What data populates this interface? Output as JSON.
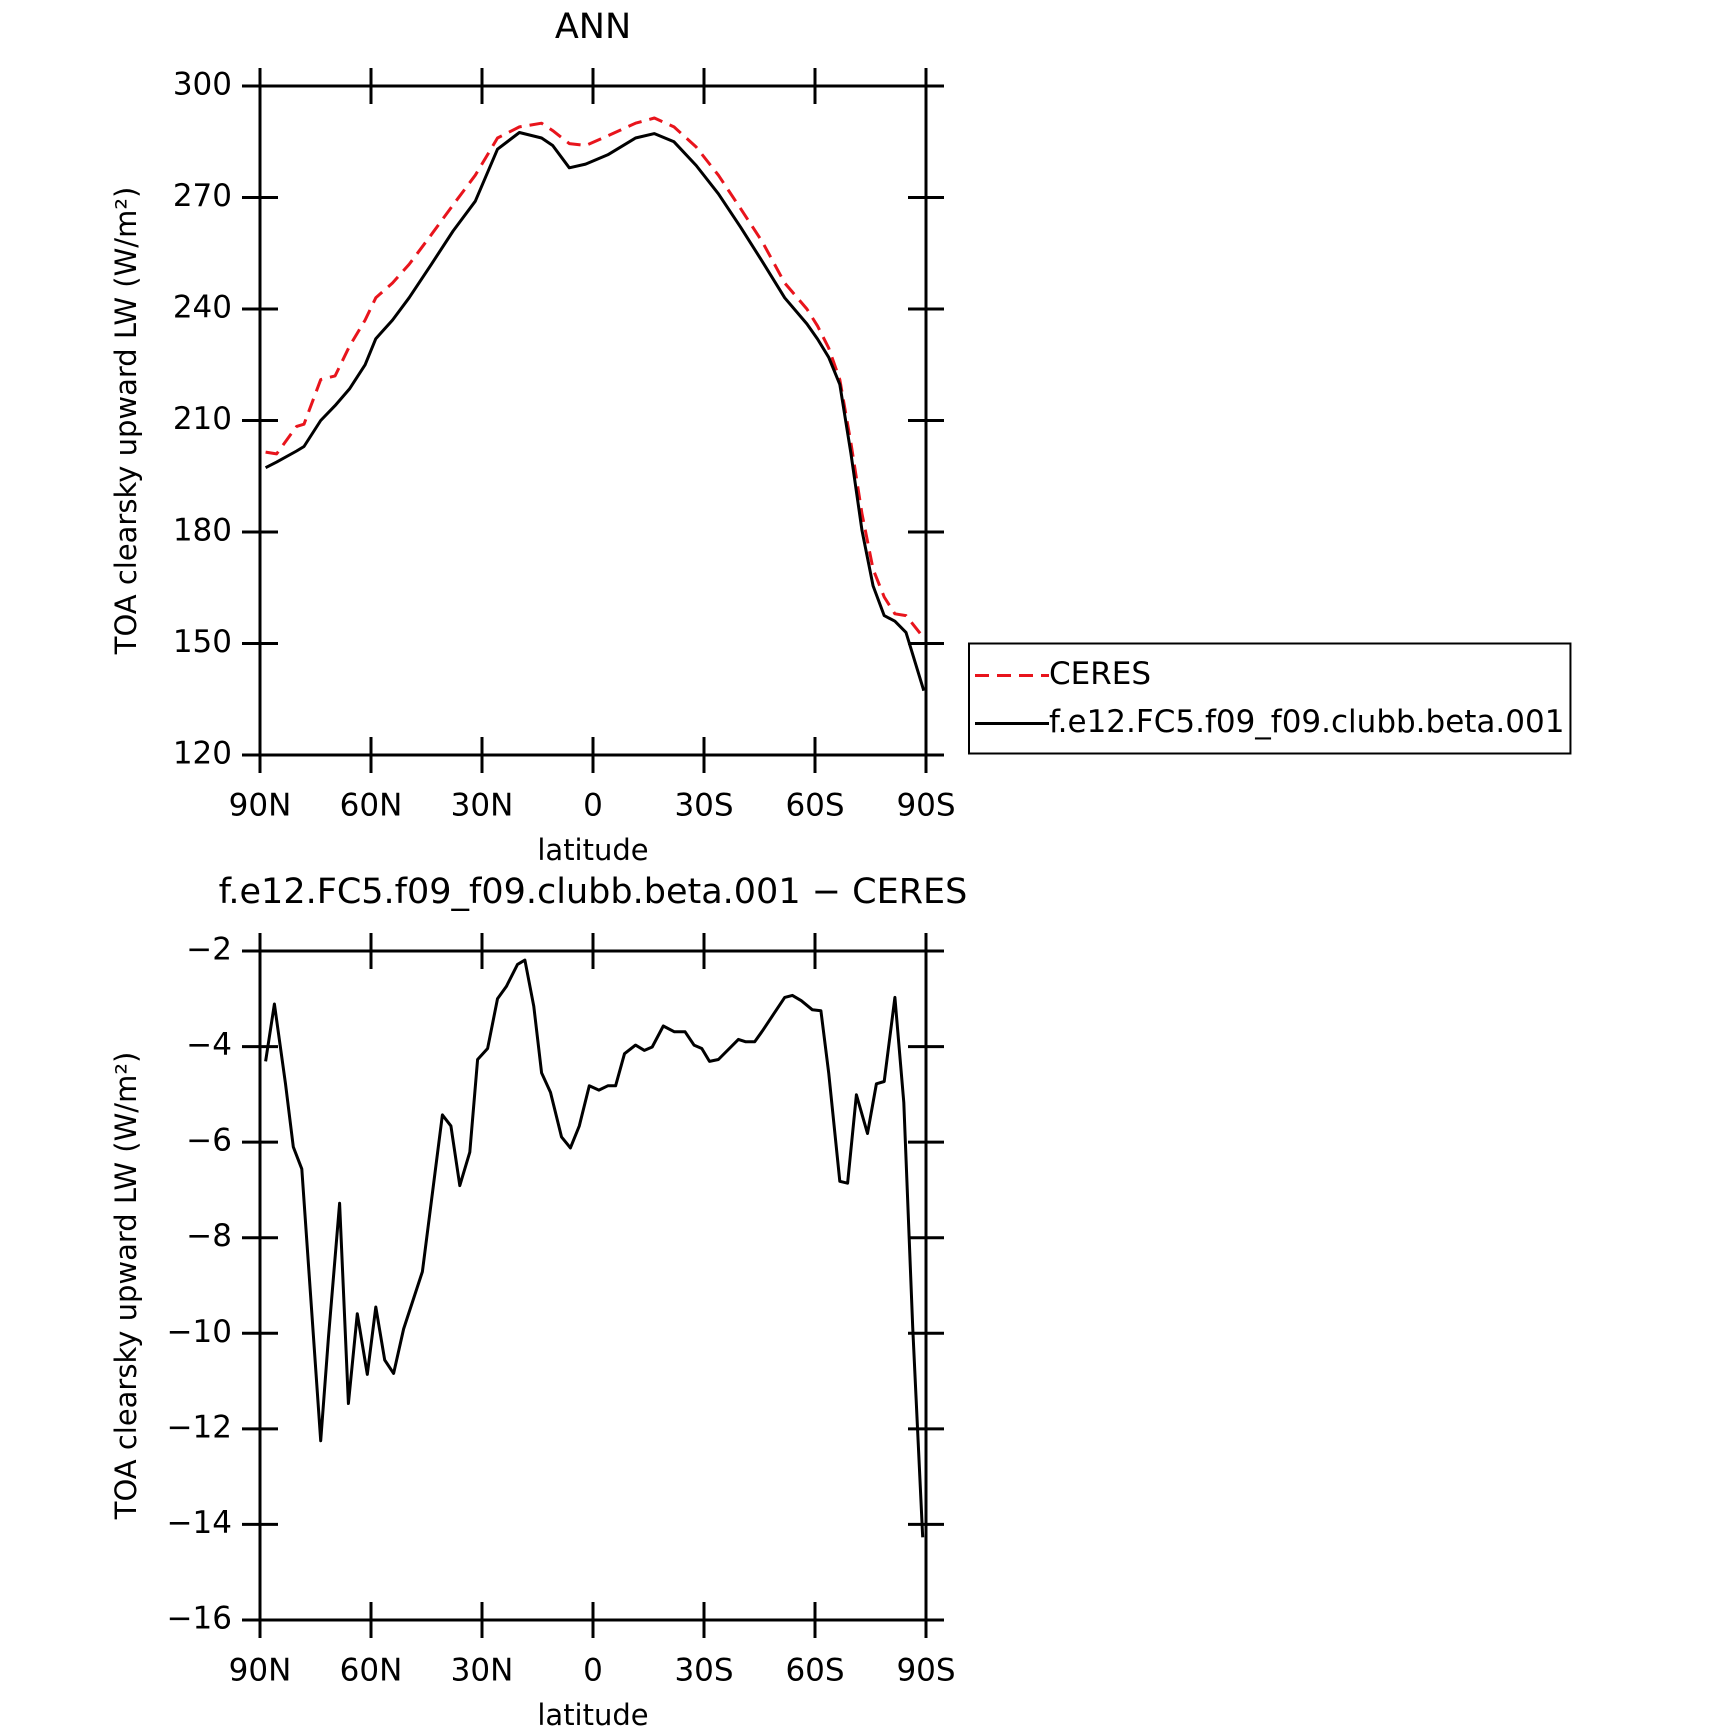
{
  "chart_data": [
    {
      "type": "line",
      "title": "ANN",
      "xlabel": "latitude",
      "ylabel": "TOA clearsky upward LW (W/m²)",
      "x": [
        88.5,
        85.5,
        80.1,
        78.1,
        73.6,
        69.7,
        65.8,
        61.6,
        58.7,
        54.2,
        49.7,
        43.7,
        37.8,
        31.8,
        25.8,
        19.9,
        13.9,
        10.9,
        6.4,
        2.0,
        -4.0,
        -11.5,
        -16.6,
        -21.9,
        -27.9,
        -33.9,
        -39.9,
        -45.8,
        -51.8,
        -57.8,
        -60.7,
        -63.7,
        -66.7,
        -69.7,
        -72.7,
        -75.7,
        -78.7,
        -81.6,
        -84.6,
        -89.4
      ],
      "series": [
        {
          "name": "CERES",
          "color": "#e8141c",
          "line_style": "dashed",
          "values": [
            201.5,
            201,
            208.4,
            209,
            221,
            222,
            230,
            237,
            243,
            247,
            252,
            260,
            268,
            276,
            286,
            289,
            290,
            288,
            284.5,
            284,
            286.6,
            290,
            291.4,
            289,
            283.6,
            276,
            267,
            258,
            247,
            240,
            235.4,
            229.5,
            221,
            204,
            184.9,
            170,
            162.5,
            158,
            157.5,
            151.5
          ]
        },
        {
          "name": "f.e12.FC5.f09_f09.clubb.beta.001",
          "color": "#000000",
          "line_style": "solid",
          "values": [
            197.3,
            198.8,
            201.8,
            203,
            210,
            214,
            218.5,
            225,
            232,
            237,
            243,
            252,
            261,
            269,
            283,
            287.5,
            286,
            284,
            278,
            279,
            281.5,
            286,
            287.2,
            285,
            278.6,
            271,
            262,
            252.7,
            243,
            236,
            231.9,
            227,
            219.7,
            201.2,
            180.4,
            165.5,
            157.5,
            156,
            153,
            137.3
          ]
        }
      ],
      "xlim": [
        90,
        -90
      ],
      "xticks": [
        {
          "value": 90,
          "label": "90N"
        },
        {
          "value": 60,
          "label": "60N"
        },
        {
          "value": 30,
          "label": "30N"
        },
        0,
        {
          "value": -30,
          "label": "30S"
        },
        {
          "value": -60,
          "label": "60S"
        },
        {
          "value": -90,
          "label": "90S"
        }
      ],
      "ylim": [
        120,
        300
      ],
      "yticks": [
        120,
        150,
        180,
        210,
        240,
        270,
        300
      ],
      "legend": "right"
    },
    {
      "type": "line",
      "title": "f.e12.FC5.f09_f09.clubb.beta.001 − CERES",
      "xlabel": "latitude",
      "ylabel": "TOA clearsky upward LW (W/m²)",
      "x": [
        88.5,
        86.1,
        83.1,
        81.0,
        78.7,
        73.6,
        71.5,
        68.5,
        66.1,
        63.7,
        61.0,
        58.7,
        56.3,
        53.9,
        51.2,
        46.1,
        40.7,
        38.4,
        36.0,
        33.3,
        31.2,
        28.5,
        25.8,
        23.4,
        20.4,
        18.4,
        16.0,
        13.9,
        11.5,
        8.5,
        6.1,
        3.7,
        1.0,
        -1.6,
        -4.0,
        -6.1,
        -8.5,
        -11.5,
        -13.9,
        -16.0,
        -19.0,
        -22.0,
        -24.9,
        -27.3,
        -29.4,
        -31.5,
        -33.9,
        -39.3,
        -41.3,
        -43.7,
        -45.8,
        -48.8,
        -51.8,
        -53.9,
        -56.3,
        -59.3,
        -61.6,
        -63.7,
        -66.7,
        -68.8,
        -71.2,
        -74.2,
        -76.6,
        -78.7,
        -81.6,
        -84.0,
        -86.4,
        -89.1
      ],
      "color": "#000000",
      "values": [
        -4.31,
        -3.11,
        -4.78,
        -6.1,
        -6.56,
        -12.25,
        -10.1,
        -7.28,
        -11.47,
        -9.59,
        -10.86,
        -9.45,
        -10.56,
        -10.84,
        -9.91,
        -8.71,
        -5.43,
        -5.66,
        -6.91,
        -6.21,
        -4.27,
        -4.04,
        -3.0,
        -2.74,
        -2.28,
        -2.19,
        -3.16,
        -4.55,
        -4.96,
        -5.89,
        -6.12,
        -5.66,
        -4.82,
        -4.91,
        -4.82,
        -4.82,
        -4.15,
        -3.97,
        -4.08,
        -4.01,
        -3.57,
        -3.69,
        -3.69,
        -3.97,
        -4.04,
        -4.31,
        -4.27,
        -3.85,
        -3.9,
        -3.9,
        -3.67,
        -3.32,
        -2.97,
        -2.93,
        -3.04,
        -3.23,
        -3.25,
        -4.55,
        -6.82,
        -6.86,
        -5.01,
        -5.82,
        -4.78,
        -4.73,
        -2.97,
        -5.17,
        -9.87,
        -14.27
      ],
      "xlim": [
        90,
        -90
      ],
      "xticks": [
        {
          "value": 90,
          "label": "90N"
        },
        {
          "value": 60,
          "label": "60N"
        },
        {
          "value": 30,
          "label": "30N"
        },
        0,
        {
          "value": -30,
          "label": "30S"
        },
        {
          "value": -60,
          "label": "60S"
        },
        {
          "value": -90,
          "label": "90S"
        }
      ],
      "ylim": [
        -16,
        -2
      ],
      "yticks": [
        {
          "value": -16,
          "label": "−16"
        },
        {
          "value": -14,
          "label": "−14"
        },
        {
          "value": -12,
          "label": "−12"
        },
        {
          "value": -10,
          "label": "−10"
        },
        {
          "value": -8,
          "label": "−8"
        },
        {
          "value": -6,
          "label": "−6"
        },
        {
          "value": -4,
          "label": "−4"
        },
        {
          "value": -2,
          "label": "−2"
        }
      ]
    }
  ]
}
